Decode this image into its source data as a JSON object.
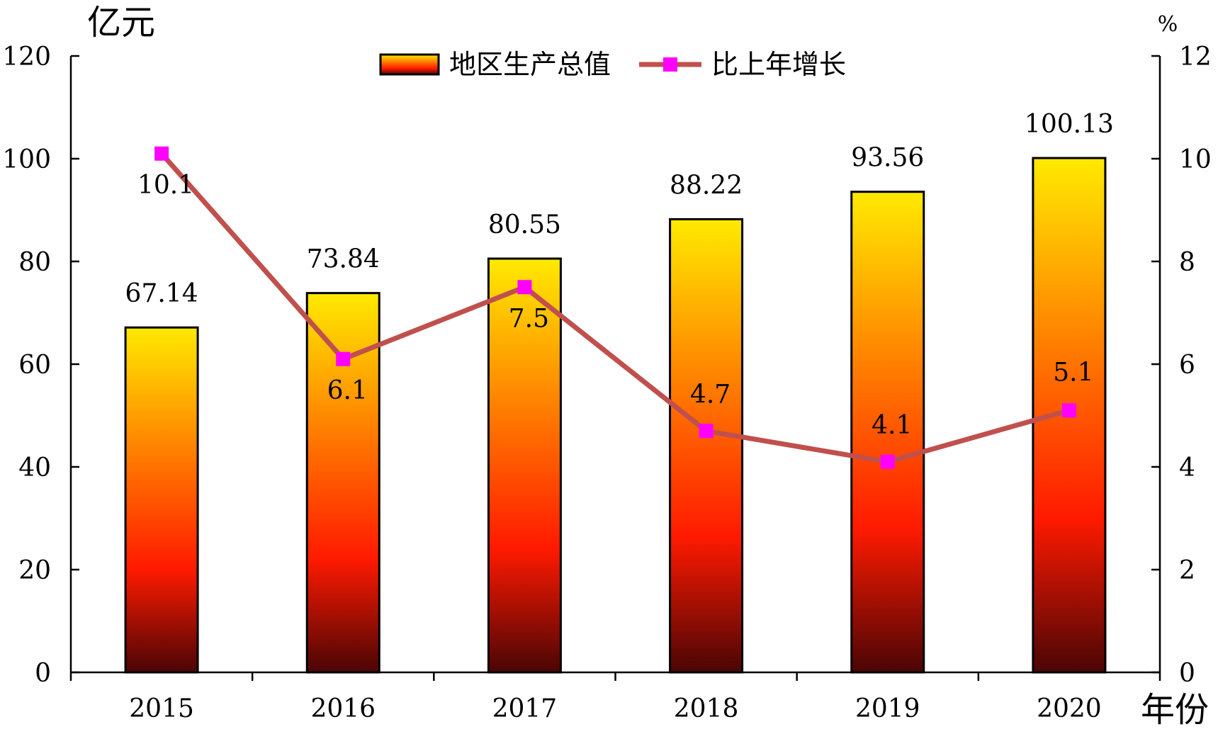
{
  "chart_data": {
    "type": "bar+line",
    "title": "",
    "categories": [
      "2015",
      "2016",
      "2017",
      "2018",
      "2019",
      "2020"
    ],
    "series": [
      {
        "name": "地区生产总值",
        "type": "bar",
        "axis": "left",
        "values": [
          67.14,
          73.84,
          80.55,
          88.22,
          93.56,
          100.13
        ],
        "labels": [
          "67.14",
          "73.84",
          "80.55",
          "88.22",
          "93.56",
          "100.13"
        ],
        "gradient_top": "#ffea00",
        "gradient_mid": "#ff1a00",
        "gradient_bottom": "#4a0505"
      },
      {
        "name": "比上年增长",
        "type": "line",
        "axis": "right",
        "values": [
          10.1,
          6.1,
          7.5,
          4.7,
          4.1,
          5.1
        ],
        "labels": [
          "10.1",
          "6.1",
          "7.5",
          "4.7",
          "4.1",
          "5.1"
        ],
        "line_color": "#c0504d",
        "marker_color": "#ff00ff"
      }
    ],
    "y_left": {
      "unit": "亿元",
      "range": [
        0,
        120
      ],
      "ticks": [
        "0",
        "20",
        "40",
        "60",
        "80",
        "100",
        "120"
      ]
    },
    "y_right": {
      "unit": "%",
      "range": [
        0,
        12
      ],
      "ticks": [
        "0",
        "2",
        "4",
        "6",
        "8",
        "10",
        "12"
      ]
    },
    "x_unit": "年份",
    "legend": {
      "position": "top-center"
    },
    "grid": false
  }
}
